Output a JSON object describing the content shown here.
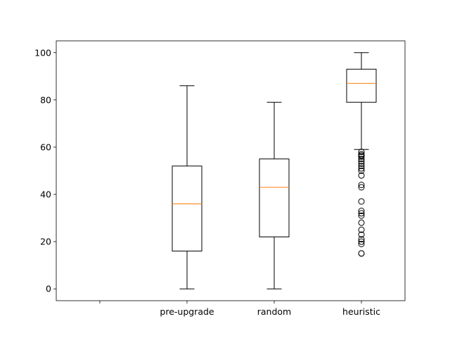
{
  "chart_data": {
    "type": "box",
    "categories": [
      "",
      "pre-upgrade",
      "random",
      "heuristic"
    ],
    "ylim": [
      -5,
      105
    ],
    "y_ticks": [
      0,
      20,
      40,
      60,
      80,
      100
    ],
    "grid": false,
    "title": "",
    "xlabel": "",
    "ylabel": "",
    "colors": {
      "box": "#000000",
      "median": "#ff7f0e",
      "flier": "#000000"
    },
    "series": [
      {
        "category": "pre-upgrade",
        "whisker_low": 0,
        "q1": 16,
        "median": 36,
        "q3": 52,
        "whisker_high": 86,
        "outliers": []
      },
      {
        "category": "random",
        "whisker_low": 0,
        "q1": 22,
        "median": 43,
        "q3": 55,
        "whisker_high": 79,
        "outliers": []
      },
      {
        "category": "heuristic",
        "whisker_low": 59,
        "q1": 79,
        "median": 87,
        "q3": 93,
        "whisker_high": 100,
        "outliers": [
          58,
          57,
          56.5,
          56,
          55,
          54,
          53,
          52,
          51,
          50,
          48,
          44,
          43,
          37,
          33,
          32,
          31,
          28,
          25,
          23,
          21,
          20,
          19,
          15,
          15
        ]
      }
    ]
  }
}
